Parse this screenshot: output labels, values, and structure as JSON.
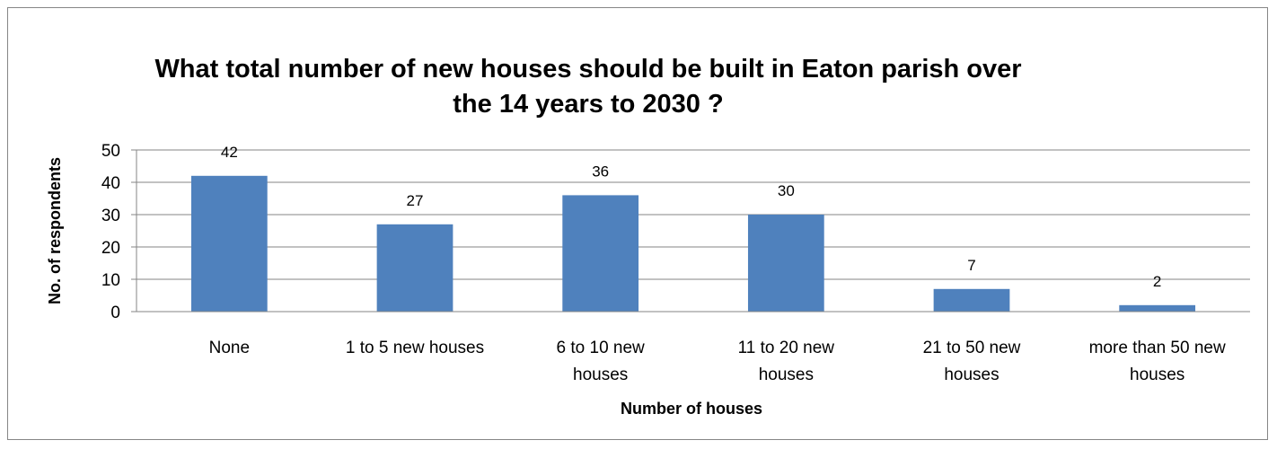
{
  "chart_data": {
    "type": "bar",
    "title": "What total number of new houses should be built in Eaton parish over the 14 years to 2030 ?",
    "title_lines": [
      "What total number of new houses should be built in Eaton parish over",
      "the 14 years to 2030 ?"
    ],
    "xlabel": "Number of houses",
    "ylabel": "No. of respondents",
    "categories": [
      [
        "None"
      ],
      [
        "1 to 5 new houses"
      ],
      [
        "6 to 10 new",
        "houses"
      ],
      [
        "11 to 20 new",
        "houses"
      ],
      [
        "21 to 50 new",
        "houses"
      ],
      [
        "more than 50 new",
        "houses"
      ]
    ],
    "values": [
      42,
      27,
      36,
      30,
      7,
      2
    ],
    "ylim": [
      0,
      50
    ],
    "yticks": [
      0,
      10,
      20,
      30,
      40,
      50
    ],
    "grid": true,
    "legend": "none",
    "bar_color": "#4F81BD",
    "grid_color": "#868686"
  }
}
